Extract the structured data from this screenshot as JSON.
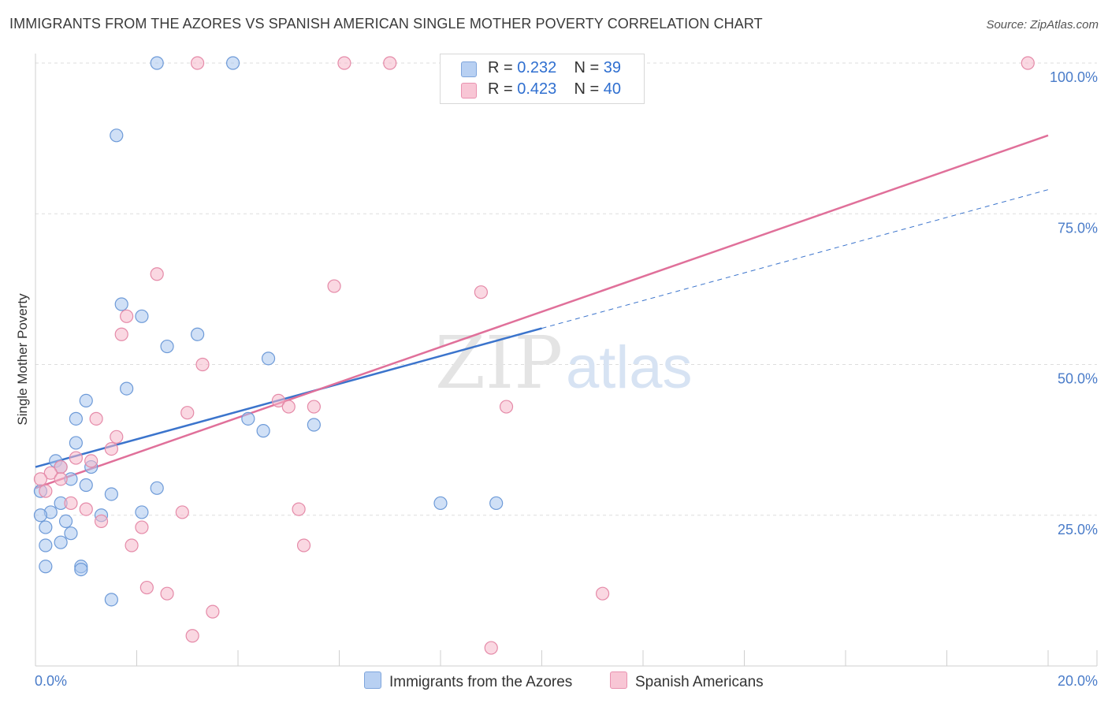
{
  "header": {
    "title": "IMMIGRANTS FROM THE AZORES VS SPANISH AMERICAN SINGLE MOTHER POVERTY CORRELATION CHART",
    "source": "Source: ZipAtlas.com"
  },
  "legend": {
    "series": [
      {
        "r_label": "R =",
        "r_value": "0.232",
        "n_label": "N =",
        "n_value": "39"
      },
      {
        "r_label": "R =",
        "r_value": "0.423",
        "n_label": "N =",
        "n_value": "40"
      }
    ]
  },
  "bottom_legend": {
    "blue": "Immigrants from the Azores",
    "pink": "Spanish Americans"
  },
  "watermark": {
    "zip": "ZIP",
    "atlas": "atlas"
  },
  "colors": {
    "blue_fill": "#a9c6ef",
    "blue_stroke": "#6d9ad8",
    "blue_line": "#3b74cc",
    "pink_fill": "#f5b8cb",
    "pink_stroke": "#e58aa8",
    "pink_line": "#e0709a",
    "grid": "#dddddd",
    "tick_text": "#4a7cc9"
  },
  "chart_data": {
    "type": "scatter",
    "title": "IMMIGRANTS FROM THE AZORES VS SPANISH AMERICAN SINGLE MOTHER POVERTY CORRELATION CHART",
    "xlabel": "",
    "ylabel": "Single Mother Poverty",
    "xlim": [
      0,
      20
    ],
    "ylim": [
      0,
      100
    ],
    "y_ticks": [
      {
        "value": 25,
        "label": "25.0%"
      },
      {
        "value": 50,
        "label": "50.0%"
      },
      {
        "value": 75,
        "label": "75.0%"
      },
      {
        "value": 100,
        "label": "100.0%"
      }
    ],
    "x_tick_labels": [
      {
        "value": 0,
        "label": "0.0%"
      },
      {
        "value": 20,
        "label": "20.0%"
      }
    ],
    "grid": true,
    "series": [
      {
        "name": "Immigrants from the Azores",
        "color": "blue",
        "R": 0.232,
        "N": 39,
        "trend": {
          "x0": 0,
          "y0": 33,
          "x1": 10,
          "y1": 56,
          "dashed_to_x": 20,
          "dashed_to_y": 79
        },
        "points": [
          [
            2.4,
            100
          ],
          [
            3.9,
            100
          ],
          [
            1.6,
            88
          ],
          [
            1.7,
            60
          ],
          [
            2.1,
            58
          ],
          [
            3.2,
            55
          ],
          [
            2.6,
            53
          ],
          [
            4.6,
            51
          ],
          [
            1.8,
            46
          ],
          [
            1.0,
            44
          ],
          [
            0.8,
            41
          ],
          [
            4.2,
            41
          ],
          [
            4.5,
            39
          ],
          [
            5.5,
            40
          ],
          [
            0.8,
            37
          ],
          [
            0.4,
            34
          ],
          [
            0.5,
            33
          ],
          [
            1.1,
            33
          ],
          [
            0.7,
            31
          ],
          [
            1.0,
            30
          ],
          [
            2.4,
            29.5
          ],
          [
            0.1,
            29
          ],
          [
            1.5,
            28.5
          ],
          [
            0.5,
            27
          ],
          [
            0.3,
            25.5
          ],
          [
            0.1,
            25
          ],
          [
            1.3,
            25
          ],
          [
            2.1,
            25.5
          ],
          [
            0.6,
            24
          ],
          [
            0.2,
            23
          ],
          [
            0.7,
            22
          ],
          [
            0.5,
            20.5
          ],
          [
            0.2,
            20
          ],
          [
            0.2,
            16.5
          ],
          [
            0.9,
            16.5
          ],
          [
            0.9,
            16
          ],
          [
            1.5,
            11
          ],
          [
            8.0,
            27
          ],
          [
            9.1,
            27
          ]
        ]
      },
      {
        "name": "Spanish Americans",
        "color": "pink",
        "R": 0.423,
        "N": 40,
        "trend": {
          "x0": 0,
          "y0": 29.5,
          "x1": 20,
          "y1": 88
        },
        "points": [
          [
            3.2,
            100
          ],
          [
            6.1,
            100
          ],
          [
            7.0,
            100
          ],
          [
            10.6,
            100
          ],
          [
            19.6,
            100
          ],
          [
            2.4,
            65
          ],
          [
            5.9,
            63
          ],
          [
            8.8,
            62
          ],
          [
            1.8,
            58
          ],
          [
            1.7,
            55
          ],
          [
            3.3,
            50
          ],
          [
            4.8,
            44
          ],
          [
            5.0,
            43
          ],
          [
            5.5,
            43
          ],
          [
            9.3,
            43
          ],
          [
            3.0,
            42
          ],
          [
            1.2,
            41
          ],
          [
            1.6,
            38
          ],
          [
            1.5,
            36
          ],
          [
            0.8,
            34.5
          ],
          [
            1.1,
            34
          ],
          [
            0.5,
            33
          ],
          [
            0.3,
            32
          ],
          [
            0.1,
            31
          ],
          [
            0.5,
            31
          ],
          [
            0.2,
            29
          ],
          [
            0.7,
            27
          ],
          [
            1.0,
            26
          ],
          [
            2.9,
            25.5
          ],
          [
            5.2,
            26
          ],
          [
            1.3,
            24
          ],
          [
            2.1,
            23
          ],
          [
            1.9,
            20
          ],
          [
            5.3,
            20
          ],
          [
            2.2,
            13
          ],
          [
            2.6,
            12
          ],
          [
            11.2,
            12
          ],
          [
            3.5,
            9
          ],
          [
            3.1,
            5
          ],
          [
            9.0,
            3
          ]
        ]
      }
    ]
  }
}
